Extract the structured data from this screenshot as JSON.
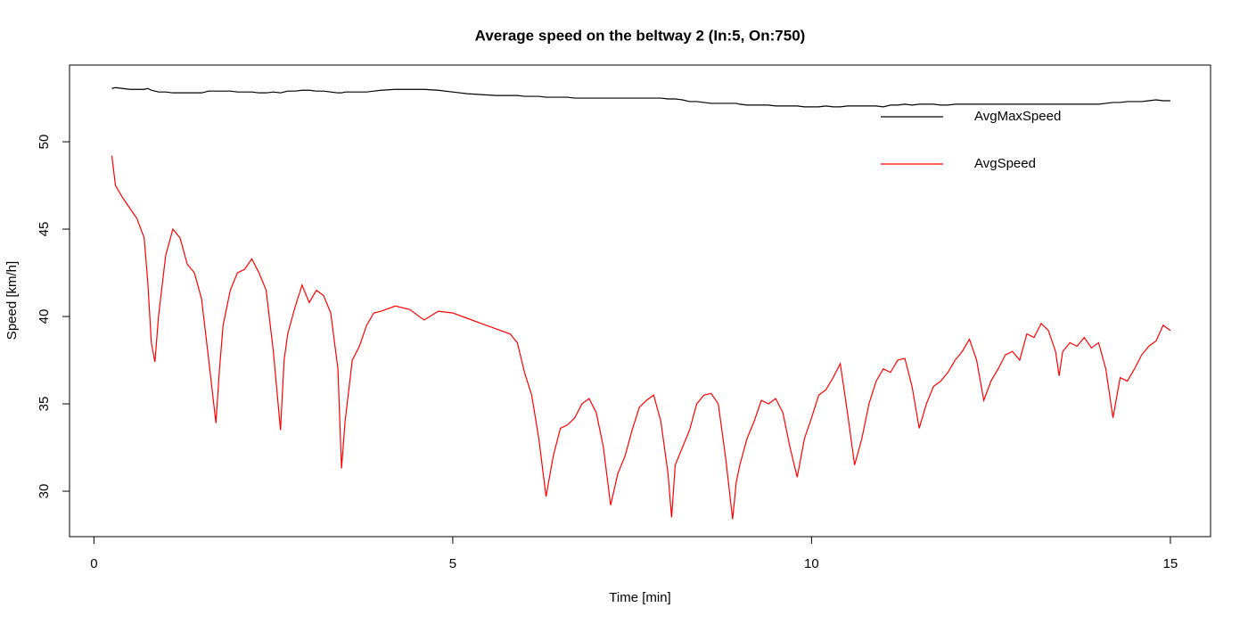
{
  "chart_data": {
    "type": "line",
    "title": "Average speed on the beltway 2 (In:5, On:750)",
    "x_label": "Time [min]",
    "y_label": "Speed [km/h]",
    "xlim": [
      -0.34,
      15.56
    ],
    "ylim": [
      27.4,
      54.39
    ],
    "xticks": [
      0,
      5,
      10,
      15
    ],
    "yticks": [
      30,
      35,
      40,
      45,
      50
    ],
    "grid": false,
    "legend": "topright",
    "x": [
      0.25,
      0.3,
      0.4,
      0.5,
      0.6,
      0.7,
      0.75,
      0.8,
      0.85,
      0.9,
      1.0,
      1.1,
      1.2,
      1.3,
      1.4,
      1.5,
      1.6,
      1.7,
      1.75,
      1.8,
      1.9,
      2.0,
      2.1,
      2.2,
      2.3,
      2.4,
      2.5,
      2.6,
      2.65,
      2.7,
      2.8,
      2.9,
      3.0,
      3.1,
      3.2,
      3.3,
      3.4,
      3.45,
      3.5,
      3.6,
      3.7,
      3.8,
      3.9,
      4.0,
      4.2,
      4.4,
      4.6,
      4.8,
      5.0,
      5.2,
      5.4,
      5.6,
      5.8,
      5.9,
      6.0,
      6.1,
      6.2,
      6.3,
      6.4,
      6.5,
      6.6,
      6.7,
      6.8,
      6.9,
      7.0,
      7.1,
      7.2,
      7.3,
      7.4,
      7.5,
      7.6,
      7.7,
      7.8,
      7.9,
      8.0,
      8.05,
      8.1,
      8.2,
      8.3,
      8.4,
      8.5,
      8.6,
      8.7,
      8.8,
      8.9,
      8.95,
      9.0,
      9.1,
      9.2,
      9.3,
      9.4,
      9.5,
      9.6,
      9.7,
      9.8,
      9.9,
      10.0,
      10.1,
      10.2,
      10.3,
      10.4,
      10.5,
      10.6,
      10.7,
      10.8,
      10.9,
      11.0,
      11.1,
      11.2,
      11.3,
      11.4,
      11.5,
      11.6,
      11.7,
      11.8,
      11.9,
      12.0,
      12.1,
      12.2,
      12.3,
      12.4,
      12.5,
      12.6,
      12.7,
      12.8,
      12.9,
      13.0,
      13.1,
      13.2,
      13.3,
      13.4,
      13.45,
      13.5,
      13.6,
      13.7,
      13.8,
      13.9,
      14.0,
      14.1,
      14.2,
      14.3,
      14.4,
      14.5,
      14.6,
      14.7,
      14.8,
      14.9,
      15.0
    ],
    "series": [
      {
        "name": "AvgMaxSpeed",
        "color": "#000000",
        "values": [
          53.05,
          53.1,
          53.05,
          53.0,
          53.0,
          53.0,
          53.05,
          52.95,
          52.9,
          52.85,
          52.85,
          52.8,
          52.8,
          52.8,
          52.8,
          52.8,
          52.9,
          52.9,
          52.9,
          52.9,
          52.9,
          52.85,
          52.85,
          52.85,
          52.8,
          52.8,
          52.85,
          52.8,
          52.85,
          52.9,
          52.9,
          52.95,
          52.95,
          52.9,
          52.9,
          52.85,
          52.8,
          52.8,
          52.85,
          52.85,
          52.85,
          52.85,
          52.9,
          52.95,
          53.0,
          53.0,
          53.0,
          52.95,
          52.85,
          52.75,
          52.7,
          52.65,
          52.65,
          52.65,
          52.6,
          52.6,
          52.6,
          52.55,
          52.55,
          52.55,
          52.55,
          52.5,
          52.5,
          52.5,
          52.5,
          52.5,
          52.5,
          52.5,
          52.5,
          52.5,
          52.5,
          52.5,
          52.5,
          52.5,
          52.45,
          52.45,
          52.45,
          52.4,
          52.3,
          52.3,
          52.25,
          52.2,
          52.2,
          52.2,
          52.2,
          52.2,
          52.15,
          52.1,
          52.1,
          52.1,
          52.1,
          52.05,
          52.05,
          52.05,
          52.05,
          52.0,
          52.0,
          52.0,
          52.05,
          52.0,
          52.0,
          52.05,
          52.05,
          52.05,
          52.05,
          52.05,
          52.0,
          52.1,
          52.1,
          52.15,
          52.1,
          52.15,
          52.15,
          52.15,
          52.1,
          52.1,
          52.15,
          52.15,
          52.15,
          52.15,
          52.15,
          52.15,
          52.15,
          52.15,
          52.15,
          52.15,
          52.15,
          52.15,
          52.15,
          52.15,
          52.15,
          52.15,
          52.15,
          52.15,
          52.15,
          52.15,
          52.15,
          52.15,
          52.2,
          52.25,
          52.25,
          52.3,
          52.3,
          52.3,
          52.35,
          52.4,
          52.35,
          52.35
        ]
      },
      {
        "name": "AvgSpeed",
        "color": "#ff0000",
        "values": [
          49.2,
          47.5,
          46.8,
          46.2,
          45.6,
          44.5,
          42,
          38.5,
          37.4,
          40,
          43.5,
          45,
          44.5,
          43,
          42.5,
          41,
          37.5,
          33.9,
          37,
          39.5,
          41.5,
          42.5,
          42.7,
          43.3,
          42.5,
          41.5,
          38,
          33.5,
          37.5,
          39,
          40.5,
          41.8,
          40.8,
          41.5,
          41.2,
          40.2,
          37,
          31.3,
          34,
          37.5,
          38.3,
          39.5,
          40.2,
          40.3,
          40.6,
          40.4,
          39.8,
          40.3,
          40.2,
          39.9,
          39.6,
          39.3,
          39.0,
          38.5,
          36.8,
          35.5,
          33,
          29.7,
          32,
          33.6,
          33.8,
          34.2,
          35,
          35.3,
          34.5,
          32.5,
          29.2,
          31,
          32,
          33.5,
          34.8,
          35.2,
          35.5,
          34,
          31,
          28.5,
          31.5,
          32.5,
          33.5,
          35,
          35.5,
          35.6,
          35,
          32,
          28.4,
          30.5,
          31.5,
          33,
          34,
          35.2,
          35,
          35.3,
          34.5,
          32.5,
          30.8,
          33,
          34.2,
          35.5,
          35.8,
          36.5,
          37.3,
          34.5,
          31.5,
          33,
          35,
          36.3,
          37,
          36.8,
          37.5,
          37.6,
          36,
          33.6,
          35,
          36,
          36.3,
          36.8,
          37.5,
          38,
          38.7,
          37.5,
          35.2,
          36.3,
          37,
          37.8,
          38,
          37.5,
          39,
          38.8,
          39.6,
          39.2,
          38,
          36.6,
          38,
          38.5,
          38.3,
          38.8,
          38.2,
          38.5,
          37,
          34.2,
          36.5,
          36.3,
          37,
          37.8,
          38.3,
          38.6,
          39.5,
          39.2
        ]
      }
    ]
  }
}
